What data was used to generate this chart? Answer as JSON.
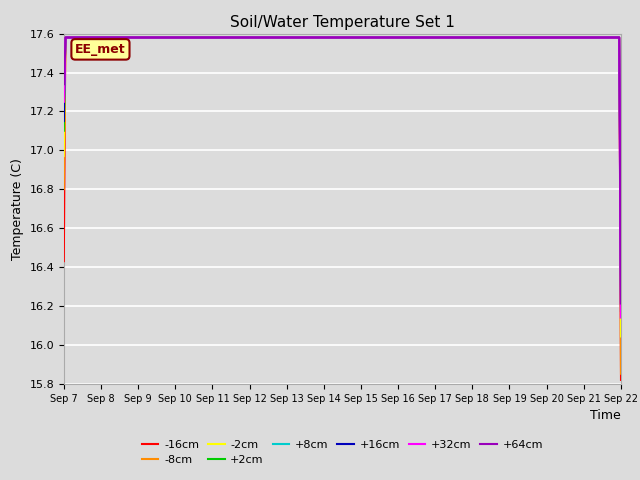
{
  "title": "Soil/Water Temperature Set 1",
  "xlabel": "Time",
  "ylabel": "Temperature (C)",
  "ylim": [
    15.8,
    17.6
  ],
  "annotation": "EE_met",
  "series": {
    "-16cm": {
      "color": "#FF0000"
    },
    "-8cm": {
      "color": "#FF8C00"
    },
    "-2cm": {
      "color": "#FFFF00"
    },
    "+2cm": {
      "color": "#00CC00"
    },
    "+8cm": {
      "color": "#00CCCC"
    },
    "+16cm": {
      "color": "#0000BB"
    },
    "+32cm": {
      "color": "#FF00FF"
    },
    "+64cm": {
      "color": "#9900BB"
    }
  },
  "xtick_labels": [
    "Sep 7",
    "Sep 8",
    "Sep 9",
    "Sep 10",
    "Sep 11",
    "Sep 12",
    "Sep 13",
    "Sep 14",
    "Sep 15",
    "Sep 16",
    "Sep 17",
    "Sep 18",
    "Sep 19",
    "Sep 20",
    "Sep 21",
    "Sep 22"
  ],
  "ytick_labels": [
    "15.8",
    "16.0",
    "16.2",
    "16.4",
    "16.6",
    "16.8",
    "17.0",
    "17.2",
    "17.4",
    "17.6"
  ],
  "ytick_vals": [
    15.8,
    16.0,
    16.2,
    16.4,
    16.6,
    16.8,
    17.0,
    17.2,
    17.4,
    17.6
  ],
  "background_color": "#DCDCDC",
  "plot_bg_color": "#DCDCDC"
}
